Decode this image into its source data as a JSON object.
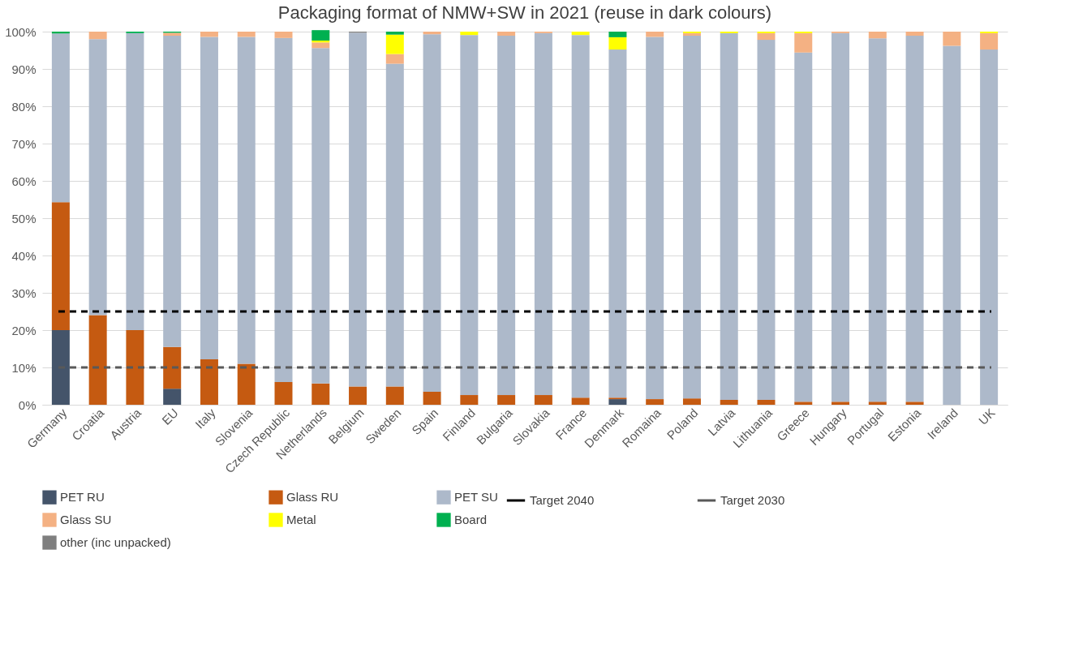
{
  "chart_data": {
    "type": "bar",
    "title": "Packaging format of NMW+SW in 2021 (reuse in dark colours)",
    "stacked": true,
    "categories": [
      "Germany",
      "Croatia",
      "Austria",
      "EU",
      "Italy",
      "Slovenia",
      "Czech Republic",
      "Netherlands",
      "Belgium",
      "Sweden",
      "Spain",
      "Finland",
      "Bulgaria",
      "Slovakia",
      "France",
      "Denmark",
      "Romaina",
      "Poland",
      "Latvia",
      "Lithuania",
      "Greece",
      "Hungary",
      "Portugal",
      "Estonia",
      "Ireland",
      "UK"
    ],
    "series": [
      {
        "name": "PET RU",
        "color": "#44546a",
        "values": [
          20,
          0,
          0,
          4.3,
          0,
          0,
          0,
          0,
          0,
          0,
          0,
          0,
          0,
          0,
          0,
          1.5,
          0,
          0,
          0,
          0,
          0,
          0,
          0,
          0,
          0,
          0
        ]
      },
      {
        "name": "Glass RU",
        "color": "#c55a11",
        "values": [
          34.3,
          24,
          20,
          11.2,
          12.2,
          11,
          6.1,
          5.7,
          4.9,
          4.9,
          3.5,
          2.6,
          2.6,
          2.6,
          1.9,
          0.4,
          1.5,
          1.7,
          1.3,
          1.3,
          0.8,
          0.8,
          0.8,
          0.8,
          0,
          0
        ]
      },
      {
        "name": "PET SU",
        "color": "#adb9ca",
        "values": [
          45.2,
          74,
          79.6,
          83.4,
          86.4,
          87.6,
          92.2,
          89.9,
          94.8,
          86.5,
          95.8,
          96.5,
          96.3,
          97,
          97.2,
          93.3,
          97.1,
          97.2,
          98.3,
          96.5,
          93.6,
          98.8,
          97.4,
          98.1,
          96.2,
          95.2
        ]
      },
      {
        "name": "Glass SU",
        "color": "#f4b183",
        "values": [
          0,
          2,
          0,
          0.8,
          1.4,
          1.4,
          1.7,
          1.5,
          0,
          2.6,
          0.7,
          0,
          1.1,
          0.4,
          0,
          0,
          1.4,
          0.7,
          0,
          1.8,
          5.2,
          0.4,
          1.8,
          1.1,
          3.8,
          4.4
        ]
      },
      {
        "name": "Metal",
        "color": "#ffff00",
        "values": [
          0,
          0,
          0,
          0,
          0,
          0,
          0,
          0.5,
          0,
          5.2,
          0,
          0.9,
          0,
          0,
          0.9,
          3.3,
          0,
          0.4,
          0.4,
          0.4,
          0.4,
          0,
          0,
          0,
          0,
          0.4
        ]
      },
      {
        "name": "Board",
        "color": "#00b050",
        "values": [
          0.5,
          0,
          0.4,
          0.3,
          0,
          0,
          0,
          2.8,
          0,
          0.8,
          0,
          0,
          0,
          0,
          0,
          1.5,
          0,
          0,
          0,
          0,
          0,
          0,
          0,
          0,
          0,
          0
        ]
      },
      {
        "name": "other (inc unpacked)",
        "color": "#7f7f7f",
        "values": [
          0,
          0,
          0,
          0,
          0,
          0,
          0,
          0,
          0.3,
          0,
          0,
          0,
          0,
          0,
          0,
          0,
          0,
          0,
          0,
          0,
          0,
          0,
          0,
          0,
          0,
          0
        ]
      }
    ],
    "ref_lines": [
      {
        "axis": "y",
        "value": 25,
        "label": "Target 2040",
        "color": "#000000",
        "line_style": "dashed"
      },
      {
        "axis": "y",
        "value": 10,
        "label": "Target 2030",
        "color": "#595959",
        "line_style": "dashed"
      }
    ],
    "ylim": [
      0,
      100
    ],
    "yticks": [
      {
        "value": 0,
        "label": "0%"
      },
      {
        "value": 10,
        "label": "10%"
      },
      {
        "value": 20,
        "label": "20%"
      },
      {
        "value": 30,
        "label": "30%"
      },
      {
        "value": 40,
        "label": "40%"
      },
      {
        "value": 50,
        "label": "50%"
      },
      {
        "value": 60,
        "label": "60%"
      },
      {
        "value": 70,
        "label": "70%"
      },
      {
        "value": 80,
        "label": "80%"
      },
      {
        "value": 90,
        "label": "90%"
      },
      {
        "value": 100,
        "label": "100%"
      }
    ],
    "grid": "y",
    "legend": "bottom"
  }
}
